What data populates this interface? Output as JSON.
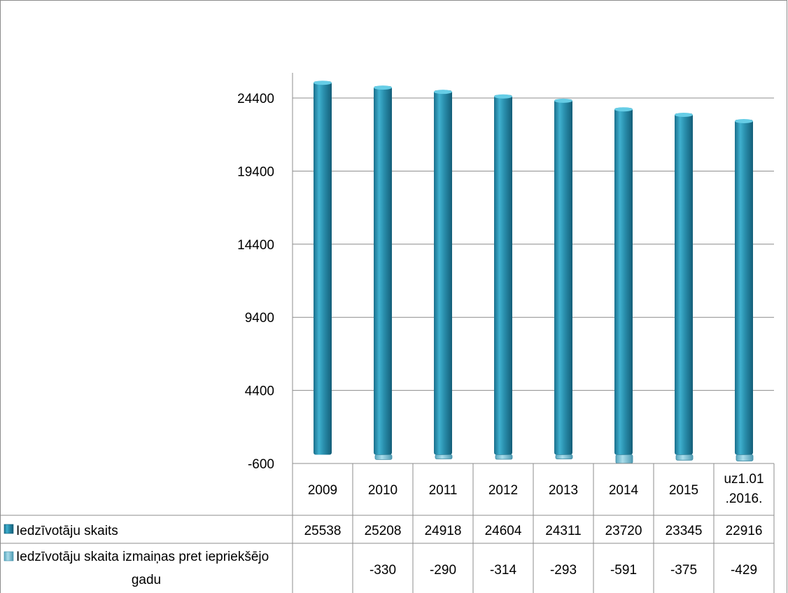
{
  "chart_data": {
    "type": "bar",
    "categories": [
      "2009",
      "2010",
      "2011",
      "2012",
      "2013",
      "2014",
      "2015",
      "uz1.01\n.2016."
    ],
    "series": [
      {
        "name": "Iedzīvotāju skaits",
        "values": [
          25538,
          25208,
          24918,
          24604,
          24311,
          23720,
          23345,
          22916
        ],
        "labels": [
          "25538",
          "25208",
          "24918",
          "24604",
          "24311",
          "23720",
          "23345",
          "22916"
        ],
        "color": "#2a90ae"
      },
      {
        "name": "Iedzīvotāju skaita izmaiņas pret iepriekšējo gadu",
        "values": [
          null,
          -330,
          -290,
          -314,
          -293,
          -591,
          -375,
          -429
        ],
        "labels": [
          "",
          "-330",
          "-290",
          "-314",
          "-293",
          "-591",
          "-375",
          "-429"
        ],
        "color": "#7fc3d8"
      }
    ],
    "y_ticks": [
      "24400",
      "19400",
      "14400",
      "9400",
      "4400",
      "-600"
    ],
    "y_tick_values": [
      24400,
      19400,
      14400,
      9400,
      4400,
      -600
    ],
    "ylim": [
      -600,
      26000
    ],
    "grid": true,
    "legend": "data-table",
    "title": "",
    "xlabel": "",
    "ylabel": ""
  }
}
